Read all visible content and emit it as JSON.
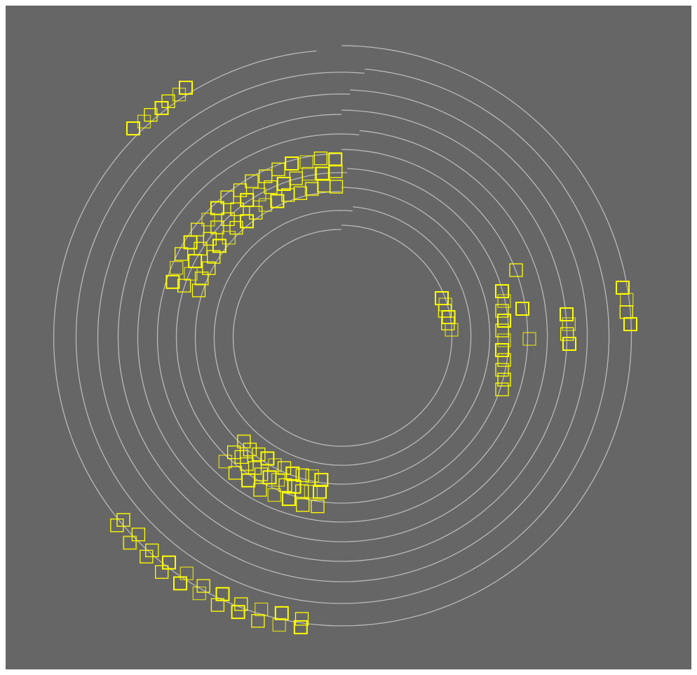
{
  "canvas": {
    "background_color": "#666666",
    "frame_color": "#ffffff"
  },
  "diagram": {
    "type": "spiral-track-with-detections",
    "ring_color": "#c8c8c8",
    "marker_color": "#ffff00",
    "marker_shape": "open-square",
    "ring_count": 10,
    "marker_groups": [
      {
        "id": "top-left-outer",
        "marker_count": 7
      },
      {
        "id": "upper-arc",
        "marker_count": 48
      },
      {
        "id": "center-right",
        "marker_count": 6
      },
      {
        "id": "right-inner",
        "marker_count": 14
      },
      {
        "id": "right-middle",
        "marker_count": 4
      },
      {
        "id": "right-outer",
        "marker_count": 4
      },
      {
        "id": "lower-left-cluster",
        "marker_count": 30
      },
      {
        "id": "bottom-left-outer",
        "marker_count": 22
      }
    ]
  }
}
